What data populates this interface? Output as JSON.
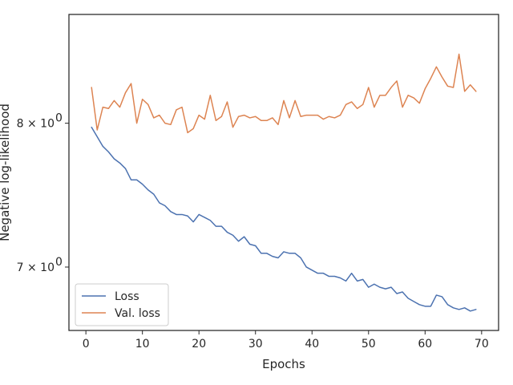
{
  "chart_data": {
    "type": "line",
    "title": "",
    "xlabel": "Epochs",
    "ylabel": "Negative log-likelihood",
    "yscale": "log",
    "xlim": [
      -3,
      73
    ],
    "ylim": [
      6.6,
      8.85
    ],
    "grid": false,
    "legend_location": "lower-left",
    "x_ticks": [
      0,
      10,
      20,
      30,
      40,
      50,
      60,
      70
    ],
    "x_tick_labels": [
      "0",
      "10",
      "20",
      "30",
      "40",
      "50",
      "60",
      "70"
    ],
    "y_ticks": [
      7,
      8
    ],
    "y_tick_labels": [
      "7 × 10",
      "8 × 10"
    ],
    "y_tick_exponent": "0",
    "x": [
      1,
      2,
      3,
      4,
      5,
      6,
      7,
      8,
      9,
      10,
      11,
      12,
      13,
      14,
      15,
      16,
      17,
      18,
      19,
      20,
      21,
      22,
      23,
      24,
      25,
      26,
      27,
      28,
      29,
      30,
      31,
      32,
      33,
      34,
      35,
      36,
      37,
      38,
      39,
      40,
      41,
      42,
      43,
      44,
      45,
      46,
      47,
      48,
      49,
      50,
      51,
      52,
      53,
      54,
      55,
      56,
      57,
      58,
      59,
      60,
      61,
      62,
      63,
      64,
      65,
      66,
      67,
      68,
      69
    ],
    "series": [
      {
        "name": "Loss",
        "color": "#4c72b0",
        "values": [
          7.97,
          7.9,
          7.83,
          7.79,
          7.74,
          7.71,
          7.67,
          7.59,
          7.59,
          7.56,
          7.52,
          7.49,
          7.43,
          7.41,
          7.37,
          7.35,
          7.35,
          7.34,
          7.3,
          7.35,
          7.33,
          7.31,
          7.27,
          7.27,
          7.23,
          7.21,
          7.17,
          7.2,
          7.15,
          7.14,
          7.09,
          7.09,
          7.07,
          7.06,
          7.1,
          7.09,
          7.09,
          7.06,
          7.0,
          6.98,
          6.96,
          6.96,
          6.94,
          6.94,
          6.93,
          6.91,
          6.96,
          6.91,
          6.92,
          6.87,
          6.89,
          6.87,
          6.86,
          6.87,
          6.83,
          6.84,
          6.8,
          6.78,
          6.76,
          6.75,
          6.75,
          6.82,
          6.81,
          6.76,
          6.74,
          6.73,
          6.74,
          6.72,
          6.73
        ]
      },
      {
        "name": "Val. loss",
        "color": "#dd8452",
        "values": [
          8.27,
          7.95,
          8.12,
          8.11,
          8.17,
          8.12,
          8.23,
          8.3,
          8.0,
          8.18,
          8.14,
          8.04,
          8.06,
          8.0,
          7.99,
          8.1,
          8.12,
          7.93,
          7.96,
          8.06,
          8.03,
          8.21,
          8.02,
          8.05,
          8.16,
          7.97,
          8.05,
          8.06,
          8.04,
          8.05,
          8.02,
          8.02,
          8.04,
          7.99,
          8.17,
          8.04,
          8.17,
          8.05,
          8.06,
          8.06,
          8.06,
          8.03,
          8.05,
          8.04,
          8.06,
          8.14,
          8.16,
          8.11,
          8.14,
          8.27,
          8.12,
          8.21,
          8.21,
          8.27,
          8.32,
          8.12,
          8.21,
          8.19,
          8.15,
          8.26,
          8.34,
          8.43,
          8.35,
          8.28,
          8.27,
          8.53,
          8.24,
          8.29,
          8.24
        ]
      }
    ]
  }
}
